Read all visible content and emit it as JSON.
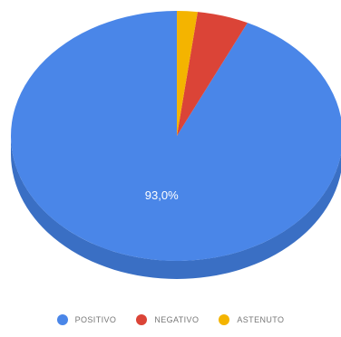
{
  "chart_data": {
    "type": "pie",
    "title": "",
    "categories": [
      "POSITIVO",
      "NEGATIVO",
      "ASTENUTO"
    ],
    "values": [
      93.0,
      5.0,
      2.0
    ],
    "data_labels": [
      "93,0%",
      "",
      ""
    ],
    "colors": [
      "#4a86e8",
      "#db4437",
      "#f4b400"
    ],
    "side_colors": [
      "#3a6fc4",
      "#b5392e",
      "#c99400"
    ],
    "three_d": true,
    "legend_position": "bottom"
  }
}
